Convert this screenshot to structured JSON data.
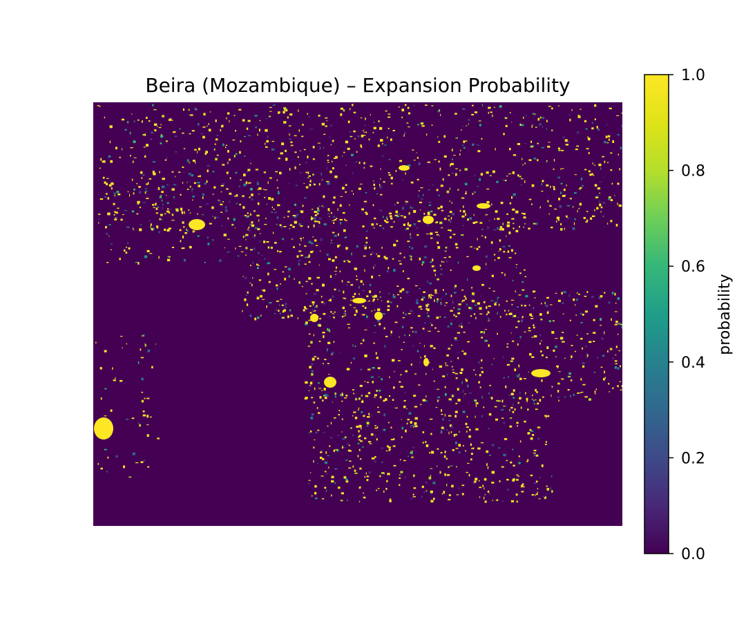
{
  "chart_data": {
    "type": "heatmap",
    "title": "Beira (Mozambique) – Expansion Probability",
    "colorbar": {
      "label": "probability",
      "range": [
        0.0,
        1.0
      ],
      "colormap": "viridis",
      "ticks": [
        "0.0",
        "0.2",
        "0.4",
        "0.6",
        "0.8",
        "1.0"
      ]
    },
    "axes_visible": false,
    "background_value": 0.0,
    "colors": {
      "low": "#440154",
      "high": "#fde725"
    }
  }
}
